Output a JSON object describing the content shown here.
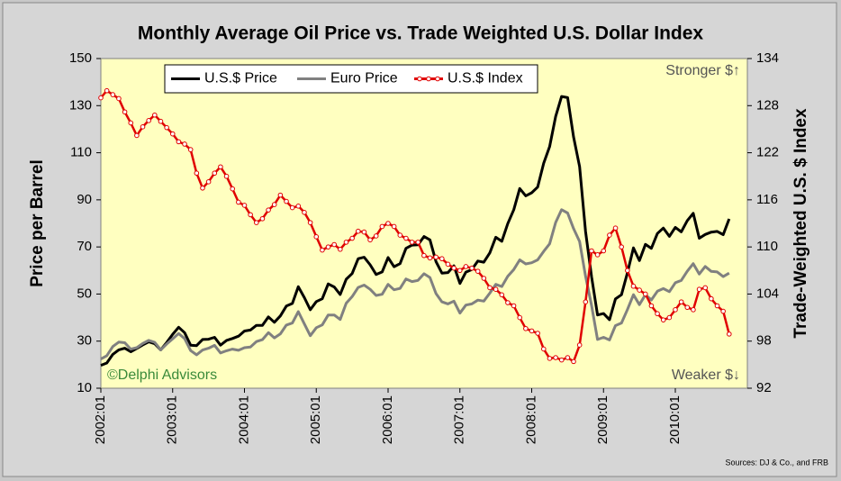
{
  "chart_data": {
    "type": "line",
    "title": "Monthly Average Oil Price vs. Trade Weighted U.S. Dollar Index",
    "y_label": "Price per Barrel",
    "y2_label": "Trade-Weighted U.S. $ Index",
    "annotations": [
      "Stronger $↑",
      "Weaker $↓",
      "©Delphi Advisors",
      "Sources: DJ & Co., and FRB"
    ],
    "categories": [
      "2002:01",
      null,
      null,
      null,
      null,
      null,
      null,
      null,
      null,
      null,
      null,
      null,
      "2003:01",
      null,
      null,
      null,
      null,
      null,
      null,
      null,
      null,
      null,
      null,
      null,
      "2004:01",
      null,
      null,
      null,
      null,
      null,
      null,
      null,
      null,
      null,
      null,
      null,
      "2005:01",
      null,
      null,
      null,
      null,
      null,
      null,
      null,
      null,
      null,
      null,
      null,
      "2006:01",
      null,
      null,
      null,
      null,
      null,
      null,
      null,
      null,
      null,
      null,
      null,
      "2007:01",
      null,
      null,
      null,
      null,
      null,
      null,
      null,
      null,
      null,
      null,
      null,
      "2008:01",
      null,
      null,
      null,
      null,
      null,
      null,
      null,
      null,
      null,
      null,
      null,
      "2009:01",
      null,
      null,
      null,
      null,
      null,
      null,
      null,
      null,
      null,
      null,
      null,
      "2010:01",
      null,
      null,
      null,
      null,
      null,
      null,
      null,
      null,
      null
    ],
    "ylim": [
      10,
      150
    ],
    "yticks": [
      10,
      30,
      50,
      70,
      90,
      110,
      130,
      150
    ],
    "y2lim": [
      92,
      134
    ],
    "y2ticks": [
      92,
      98,
      104,
      110,
      116,
      122,
      128,
      134
    ],
    "legend": "top-left",
    "series": [
      {
        "name": "U.S.$ Price",
        "color": "#000000",
        "values": [
          19.7,
          20.7,
          24.4,
          26.3,
          27.0,
          25.5,
          26.9,
          28.4,
          29.7,
          28.9,
          26.3,
          29.4,
          32.9,
          35.9,
          33.6,
          28.3,
          28.1,
          30.7,
          30.8,
          31.6,
          28.3,
          30.3,
          31.1,
          32.1,
          34.3,
          34.7,
          36.7,
          36.7,
          40.3,
          38.0,
          40.7,
          44.9,
          46.0,
          53.1,
          48.5,
          43.3,
          46.8,
          48.0,
          54.3,
          53.0,
          49.8,
          56.3,
          58.7,
          65.0,
          65.6,
          62.4,
          58.3,
          59.4,
          65.5,
          61.6,
          62.9,
          69.4,
          70.8,
          70.9,
          74.4,
          73.0,
          63.8,
          58.9,
          59.1,
          62.0,
          54.5,
          59.3,
          60.4,
          64.0,
          63.5,
          67.5,
          74.1,
          72.4,
          79.9,
          85.8,
          94.8,
          91.7,
          93.0,
          95.4,
          105.5,
          112.6,
          125.4,
          133.9,
          133.4,
          116.7,
          104.1,
          76.6,
          57.3,
          41.1,
          41.7,
          39.1,
          47.9,
          49.7,
          59.0,
          69.6,
          64.2,
          71.1,
          69.4,
          75.7,
          78.0,
          74.5,
          78.3,
          76.4,
          81.2,
          84.3,
          73.7,
          75.3,
          76.3,
          76.6,
          75.2,
          81.9
        ]
      },
      {
        "name": "Euro Price",
        "color": "#808080",
        "values": [
          22.4,
          23.8,
          27.7,
          29.6,
          29.3,
          26.6,
          27.2,
          29.0,
          30.3,
          29.5,
          26.3,
          28.8,
          31.0,
          33.2,
          31.1,
          26.0,
          24.2,
          26.2,
          27.0,
          28.2,
          25.0,
          25.9,
          26.6,
          26.1,
          27.2,
          27.5,
          29.8,
          30.6,
          33.6,
          31.4,
          33.1,
          36.8,
          37.7,
          42.5,
          37.3,
          32.3,
          35.7,
          36.9,
          41.1,
          41.1,
          39.2,
          46.1,
          48.9,
          52.8,
          53.8,
          52.0,
          49.4,
          49.9,
          54.1,
          51.8,
          52.4,
          56.4,
          55.3,
          55.8,
          58.6,
          57.0,
          50.2,
          46.7,
          45.8,
          47.0,
          41.9,
          45.3,
          45.8,
          47.4,
          47.0,
          50.4,
          54.1,
          53.2,
          57.5,
          60.4,
          64.5,
          62.8,
          63.3,
          64.5,
          68.1,
          71.3,
          80.4,
          85.8,
          84.4,
          77.8,
          72.3,
          57.6,
          45.1,
          30.7,
          31.6,
          30.5,
          36.6,
          37.7,
          43.4,
          49.7,
          45.5,
          49.7,
          47.5,
          51.2,
          52.3,
          51.0,
          54.8,
          55.8,
          59.7,
          62.9,
          58.5,
          61.7,
          59.6,
          59.4,
          57.4,
          58.9
        ]
      },
      {
        "name": "U.S.$ Index",
        "color": "#e00000",
        "axis": "y2",
        "marker": "circle",
        "values": [
          129.0,
          129.9,
          129.4,
          128.9,
          127.2,
          125.8,
          124.2,
          125.3,
          126.1,
          126.8,
          126.0,
          125.2,
          124.4,
          123.4,
          123.1,
          122.4,
          119.4,
          117.5,
          118.3,
          119.4,
          120.2,
          119.0,
          117.4,
          115.7,
          115.3,
          114.1,
          113.1,
          113.6,
          114.7,
          115.4,
          116.6,
          115.8,
          115.0,
          115.2,
          114.4,
          113.1,
          111.3,
          109.6,
          110.0,
          110.3,
          109.7,
          110.6,
          111.1,
          112.0,
          111.9,
          110.9,
          111.4,
          112.6,
          113.0,
          112.6,
          111.5,
          111.1,
          110.6,
          110.6,
          108.9,
          108.6,
          108.7,
          108.5,
          107.8,
          107.3,
          107.0,
          107.5,
          107.3,
          106.9,
          106.0,
          104.8,
          104.6,
          103.9,
          102.9,
          102.5,
          101.0,
          99.6,
          99.3,
          99.0,
          97.0,
          95.8,
          95.9,
          95.6,
          95.9,
          95.4,
          97.5,
          103.0,
          109.5,
          109.0,
          109.5,
          111.5,
          112.4,
          110.0,
          107.0,
          105.0,
          104.5,
          104.0,
          102.5,
          101.5,
          100.7,
          101.0,
          102.0,
          103.0,
          102.3,
          102.0,
          104.6,
          104.8,
          103.4,
          102.5,
          101.8,
          98.9
        ]
      }
    ]
  }
}
